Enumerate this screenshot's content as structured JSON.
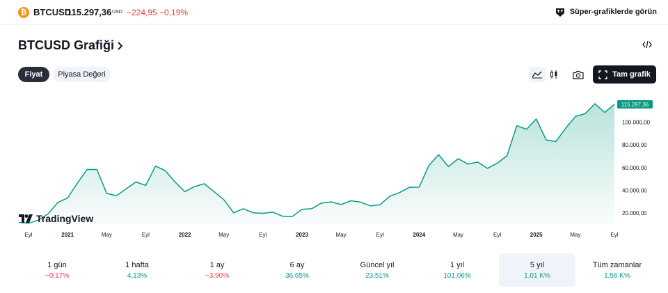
{
  "ticker": {
    "symbol": "BTCUSD",
    "price": "115.297,36",
    "currency": "USD",
    "change": "−224,95",
    "change_percent": "−0,19%",
    "icon": "bitcoin-icon",
    "super_charts_label": "Süper-grafiklerde görün"
  },
  "header": {
    "title": "BTCUSD Grafiği",
    "tabs": [
      "Fiyat",
      "Piyasa Değeri"
    ],
    "active_tab": "Fiyat",
    "full_chart_label": "Tam grafik",
    "embed_icon": "code-icon",
    "camera_icon": "camera-icon",
    "area_icon": "area-chart-icon",
    "candle_icon": "candlestick-icon",
    "fullscreen_icon": "fullscreen-icon"
  },
  "chart_data": {
    "type": "area",
    "y_ticks": [
      "20.000,00",
      "40.000,00",
      "60.000,00",
      "80.000,00",
      "100.000,00"
    ],
    "y_tick_values": [
      20000,
      40000,
      60000,
      80000,
      100000
    ],
    "x_ticks": [
      "Eyl",
      "2021",
      "May",
      "Eyl",
      "2022",
      "May",
      "Eyl",
      "2023",
      "May",
      "Eyl",
      "2024",
      "May",
      "Eyl",
      "2025",
      "May",
      "Eyl"
    ],
    "x_tick_dates": [
      "2020-09",
      "2021-01",
      "2021-05",
      "2021-09",
      "2022-01",
      "2022-05",
      "2022-09",
      "2023-01",
      "2023-05",
      "2023-09",
      "2024-01",
      "2024-05",
      "2024-09",
      "2025-01",
      "2025-05",
      "2025-09"
    ],
    "ylim": [
      10000,
      125000
    ],
    "last_value_label": "115.297,36",
    "series": [
      {
        "dates": [
          "2020-08",
          "2020-09",
          "2020-10",
          "2020-11",
          "2020-12",
          "2021-01",
          "2021-02",
          "2021-03",
          "2021-04",
          "2021-05",
          "2021-06",
          "2021-07",
          "2021-08",
          "2021-09",
          "2021-10",
          "2021-11",
          "2021-12",
          "2022-01",
          "2022-02",
          "2022-03",
          "2022-04",
          "2022-05",
          "2022-06",
          "2022-07",
          "2022-08",
          "2022-09",
          "2022-10",
          "2022-11",
          "2022-12",
          "2023-01",
          "2023-02",
          "2023-03",
          "2023-04",
          "2023-05",
          "2023-06",
          "2023-07",
          "2023-08",
          "2023-09",
          "2023-10",
          "2023-11",
          "2023-12",
          "2024-01",
          "2024-02",
          "2024-03",
          "2024-04",
          "2024-05",
          "2024-06",
          "2024-07",
          "2024-08",
          "2024-09",
          "2024-10",
          "2024-11",
          "2024-12",
          "2025-01",
          "2025-02",
          "2025-03",
          "2025-04",
          "2025-05",
          "2025-06",
          "2025-07",
          "2025-08",
          "2025-09"
        ],
        "values": [
          11500,
          10800,
          13500,
          19000,
          29000,
          33000,
          46000,
          58000,
          58000,
          37000,
          35000,
          41000,
          47000,
          44000,
          61000,
          57000,
          47000,
          38500,
          43000,
          45500,
          38500,
          31500,
          20000,
          23500,
          20000,
          19500,
          20500,
          17000,
          16600,
          23000,
          23500,
          28500,
          29500,
          27200,
          30500,
          29300,
          26000,
          27000,
          34500,
          37700,
          42300,
          42500,
          61500,
          71000,
          60500,
          67500,
          62700,
          64500,
          59000,
          63500,
          70000,
          96500,
          93400,
          102400,
          84000,
          82500,
          94200,
          104600,
          107100,
          115800,
          108200,
          115297
        ]
      }
    ]
  },
  "periods": [
    {
      "label": "1 gün",
      "value": "−0,17%",
      "dir": "down",
      "selected": false
    },
    {
      "label": "1 hafta",
      "value": "4,13%",
      "dir": "up",
      "selected": false
    },
    {
      "label": "1 ay",
      "value": "−3,90%",
      "dir": "down",
      "selected": false
    },
    {
      "label": "6 ay",
      "value": "36,65%",
      "dir": "up",
      "selected": false
    },
    {
      "label": "Güncel yıl",
      "value": "23,51%",
      "dir": "up",
      "selected": false
    },
    {
      "label": "1 yıl",
      "value": "101,06%",
      "dir": "up",
      "selected": false
    },
    {
      "label": "5 yıl",
      "value": "1,01 K%",
      "dir": "up",
      "selected": true
    },
    {
      "label": "Tüm zamanlar",
      "value": "1,56 K%",
      "dir": "up",
      "selected": false
    }
  ],
  "branding": {
    "logo_text": "TradingView"
  },
  "colors": {
    "line": "#089981",
    "down": "#f23645",
    "up": "#089981",
    "btc": "#f7931a",
    "dark": "#131722"
  }
}
